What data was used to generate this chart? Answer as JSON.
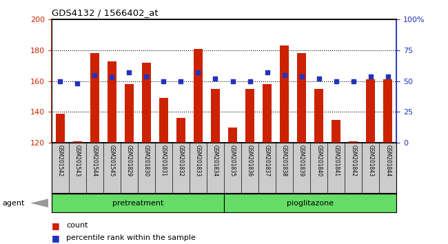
{
  "title": "GDS4132 / 1566402_at",
  "samples": [
    "GSM201542",
    "GSM201543",
    "GSM201544",
    "GSM201545",
    "GSM201829",
    "GSM201830",
    "GSM201831",
    "GSM201832",
    "GSM201833",
    "GSM201834",
    "GSM201835",
    "GSM201836",
    "GSM201837",
    "GSM201838",
    "GSM201839",
    "GSM201840",
    "GSM201841",
    "GSM201842",
    "GSM201843",
    "GSM201844"
  ],
  "count_values": [
    139,
    121,
    178,
    173,
    158,
    172,
    149,
    136,
    181,
    155,
    130,
    155,
    158,
    183,
    178,
    155,
    135,
    121,
    161,
    161
  ],
  "percentile_values": [
    50,
    48,
    55,
    53,
    57,
    54,
    50,
    50,
    57,
    52,
    50,
    50,
    57,
    55,
    54,
    52,
    50,
    50,
    54,
    54
  ],
  "pretreatment_count": 10,
  "pioglitazone_count": 10,
  "ylim_left": [
    120,
    200
  ],
  "ylim_right": [
    0,
    100
  ],
  "yticks_left": [
    120,
    140,
    160,
    180,
    200
  ],
  "yticks_right": [
    0,
    25,
    50,
    75,
    100
  ],
  "yticklabels_right": [
    "0",
    "25",
    "50",
    "75",
    "100%"
  ],
  "bar_color": "#cc2200",
  "dot_color": "#2233bb",
  "bar_width": 0.5,
  "agent_label": "agent",
  "pretreatment_label": "pretreatment",
  "pioglitazone_label": "pioglitazone",
  "legend_count_label": "count",
  "legend_percentile_label": "percentile rank within the sample",
  "title_color": "#000000",
  "left_tick_color": "#cc2200",
  "right_tick_color": "#2233bb",
  "sample_bg_color": "#cccccc",
  "green_color": "#66dd66",
  "agent_arrow_color": "#999999"
}
